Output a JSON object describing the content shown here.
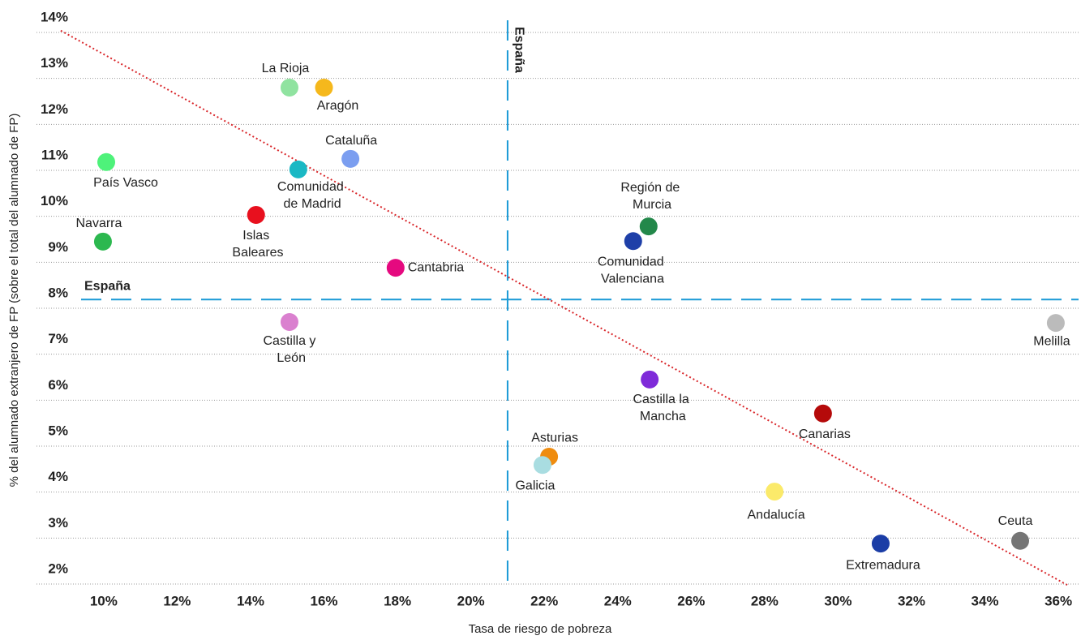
{
  "chart_data": {
    "type": "scatter",
    "x_label": "Tasa de riesgo de pobreza",
    "y_label": "% del alumnado extranjero de FP (sobre el total del alumnado de FP)",
    "xlim": [
      8.17,
      36.55
    ],
    "ylim": [
      2,
      14
    ],
    "xticks": [
      {
        "value": 10,
        "label": "10%"
      },
      {
        "value": 12,
        "label": "12%"
      },
      {
        "value": 14,
        "label": "14%"
      },
      {
        "value": 16,
        "label": "16%"
      },
      {
        "value": 18,
        "label": "18%"
      },
      {
        "value": 20,
        "label": "20%"
      },
      {
        "value": 22,
        "label": "22%"
      },
      {
        "value": 24,
        "label": "24%"
      },
      {
        "value": 26,
        "label": "26%"
      },
      {
        "value": 28,
        "label": "28%"
      },
      {
        "value": 30,
        "label": "30%"
      },
      {
        "value": 32,
        "label": "32%"
      },
      {
        "value": 34,
        "label": "34%"
      },
      {
        "value": 36,
        "label": "36%"
      }
    ],
    "yticks": [
      {
        "value": 2,
        "label": "2%"
      },
      {
        "value": 3,
        "label": "3%"
      },
      {
        "value": 4,
        "label": "4%"
      },
      {
        "value": 5,
        "label": "5%"
      },
      {
        "value": 6,
        "label": "6%"
      },
      {
        "value": 7,
        "label": "7%"
      },
      {
        "value": 8,
        "label": "8%"
      },
      {
        "value": 9,
        "label": "9%"
      },
      {
        "value": 10,
        "label": "10%"
      },
      {
        "value": 11,
        "label": "11%"
      },
      {
        "value": 12,
        "label": "12%"
      },
      {
        "value": 13,
        "label": "13%"
      },
      {
        "value": 14,
        "label": "14%"
      }
    ],
    "grid": true,
    "labels": [
      "La Rioja",
      "Aragón",
      "País Vasco",
      "Comunidad de Madrid",
      "Cataluña",
      "Navarra",
      "Islas Baleares",
      "Cantabria",
      "Región de Murcia",
      "Comunidad Valenciana",
      "Castilla y León",
      "Melilla",
      "Castilla la Mancha",
      "Canarias",
      "Asturias",
      "Galicia",
      "Andalucía",
      "Extremadura",
      "Ceuta"
    ],
    "x": [
      15.06,
      16.0,
      10.07,
      15.3,
      16.72,
      9.98,
      14.15,
      17.95,
      24.84,
      24.42,
      15.06,
      35.93,
      24.87,
      29.59,
      22.13,
      21.95,
      28.27,
      31.16,
      34.96
    ],
    "values": [
      12.8,
      12.8,
      11.18,
      11.02,
      11.25,
      9.45,
      10.03,
      8.88,
      9.78,
      9.46,
      7.7,
      7.68,
      6.45,
      5.71,
      4.77,
      4.59,
      4.01,
      2.88,
      2.94
    ],
    "colors": [
      "#90e3a0",
      "#f5b81c",
      "#4ef27a",
      "#1ab8c4",
      "#7b9ef0",
      "#2cb84f",
      "#e8101e",
      "#e5097f",
      "#23884a",
      "#1e3fa8",
      "#da80cf",
      "#bbbbbb",
      "#7f2bd9",
      "#b50a0a",
      "#ef8c0f",
      "#a9dde1",
      "#fbea6a",
      "#1b3da6",
      "#757575"
    ],
    "reference_lines": [
      {
        "label": "España",
        "axis": "x",
        "value": 21.0,
        "color": "#1a9ad6"
      },
      {
        "label": "España",
        "axis": "y",
        "value": 8.19,
        "color": "#1a9ad6"
      }
    ],
    "trendline": {
      "x": [
        8.83,
        36.24
      ],
      "values": [
        14.04,
        1.98
      ],
      "color": "#d9262a"
    }
  }
}
